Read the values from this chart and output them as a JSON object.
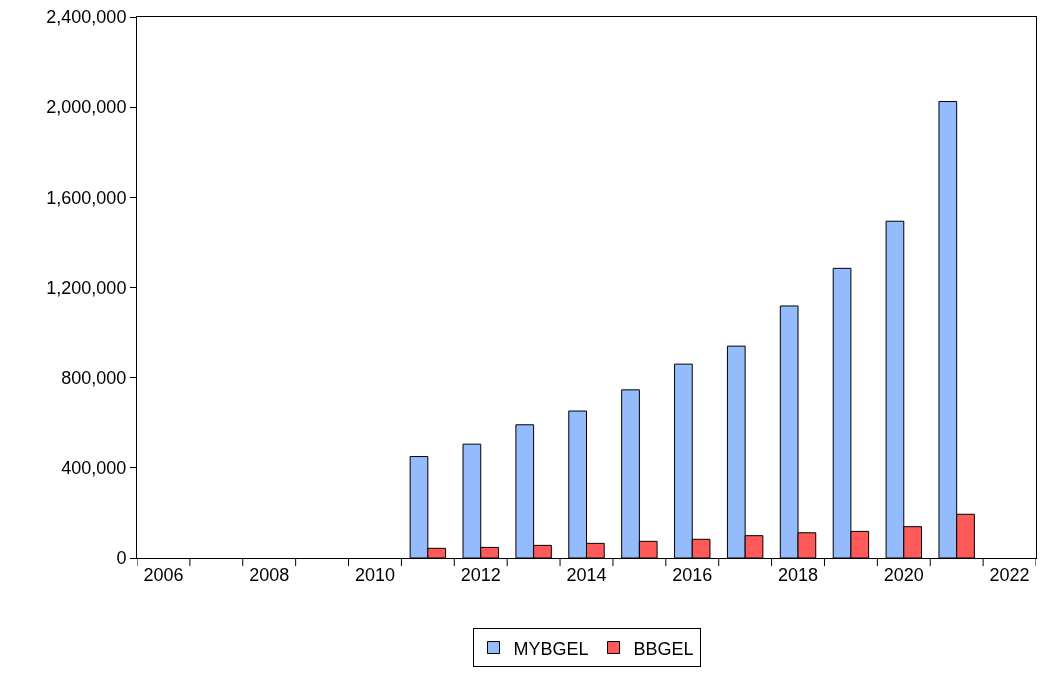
{
  "chart_data": {
    "type": "bar",
    "categories": [
      "2006",
      null,
      "2008",
      null,
      "2010",
      null,
      "2012",
      null,
      "2014",
      null,
      "2016",
      null,
      "2018",
      null,
      "2020",
      null,
      "2022"
    ],
    "series": [
      {
        "name": "MYBGEL",
        "color": "#94bcfc",
        "values": [
          null,
          null,
          null,
          null,
          null,
          450000,
          505000,
          591000,
          652000,
          746000,
          860000,
          940000,
          1118000,
          1285000,
          1494000,
          2025000,
          null
        ]
      },
      {
        "name": "BBGEL",
        "color": "#ff5a5a",
        "values": [
          null,
          null,
          null,
          null,
          null,
          43000,
          47000,
          56000,
          65000,
          74000,
          83000,
          99000,
          112000,
          118000,
          139000,
          194000,
          null
        ]
      }
    ],
    "ylim": [
      0,
      2400000
    ],
    "yticks": [
      {
        "value": 0,
        "label": "0"
      },
      {
        "value": 400000,
        "label": "400,000"
      },
      {
        "value": 800000,
        "label": "800,000"
      },
      {
        "value": 1200000,
        "label": "1,200,000"
      },
      {
        "value": 1600000,
        "label": "1,600,000"
      },
      {
        "value": 2000000,
        "label": "2,000,000"
      },
      {
        "value": 2400000,
        "label": "2,400,000"
      }
    ],
    "grid": false,
    "legend": "bottom"
  }
}
